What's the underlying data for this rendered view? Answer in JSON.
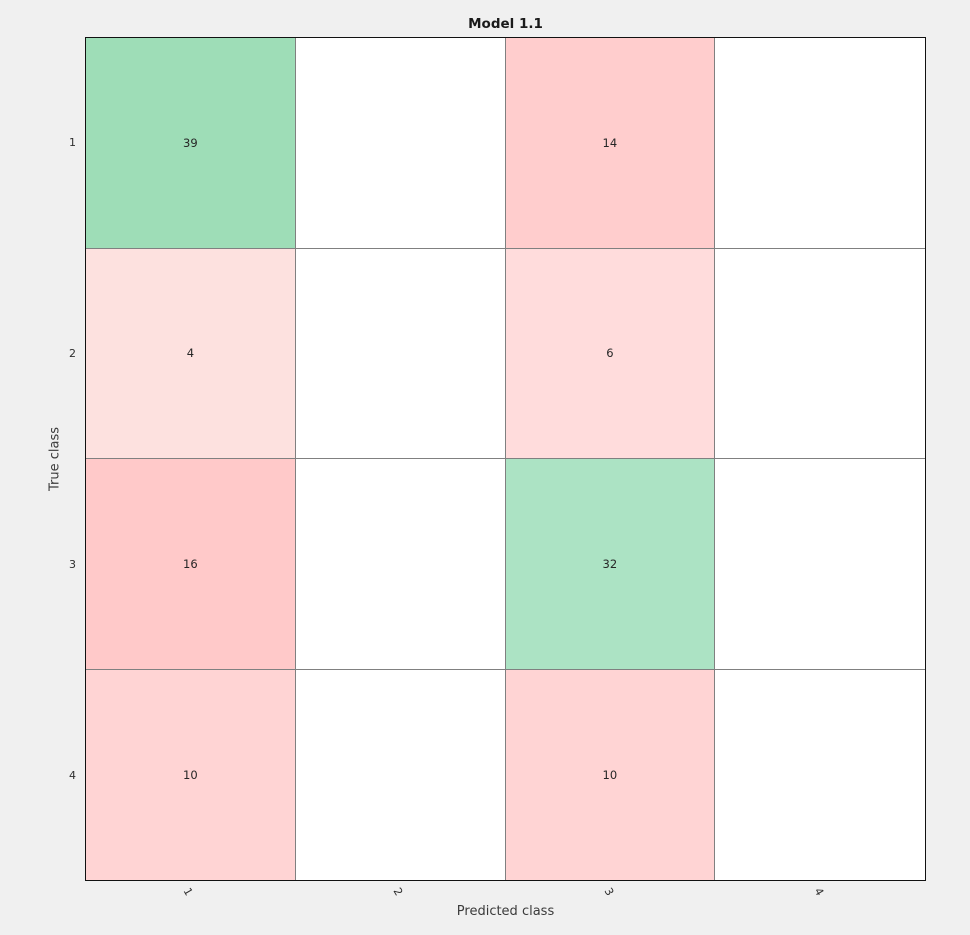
{
  "figure": {
    "background": "#f0f0f0",
    "plot_background": "#ffffff",
    "outer_border_color": "#111111",
    "grid_line_color": "#808080"
  },
  "chart_data": {
    "type": "heatmap",
    "subtype": "confusion-matrix",
    "title": "Model 1.1",
    "xlabel": "Predicted class",
    "ylabel": "True class",
    "x_categories": [
      "1",
      "2",
      "3",
      "4"
    ],
    "y_categories": [
      "1",
      "2",
      "3",
      "4"
    ],
    "matrix": [
      [
        39,
        null,
        14,
        null
      ],
      [
        4,
        null,
        6,
        null
      ],
      [
        16,
        null,
        32,
        null
      ],
      [
        10,
        null,
        10,
        null
      ]
    ],
    "cell_colors": [
      [
        "#9eddb7",
        "#ffffff",
        "#ffcdcd",
        "#ffffff"
      ],
      [
        "#fde1df",
        "#ffffff",
        "#ffdcdc",
        "#ffffff"
      ],
      [
        "#ffc9c9",
        "#ffffff",
        "#ace3c4",
        "#ffffff"
      ],
      [
        "#ffd4d4",
        "#ffffff",
        "#ffd4d4",
        "#ffffff"
      ]
    ],
    "colors": {
      "correct_green": "#9eddb7",
      "incorrect_red": "#ffc9c9",
      "empty_cell": "#ffffff"
    },
    "legend": "none",
    "grid": "on",
    "x_tick_rotation_deg": 60
  }
}
